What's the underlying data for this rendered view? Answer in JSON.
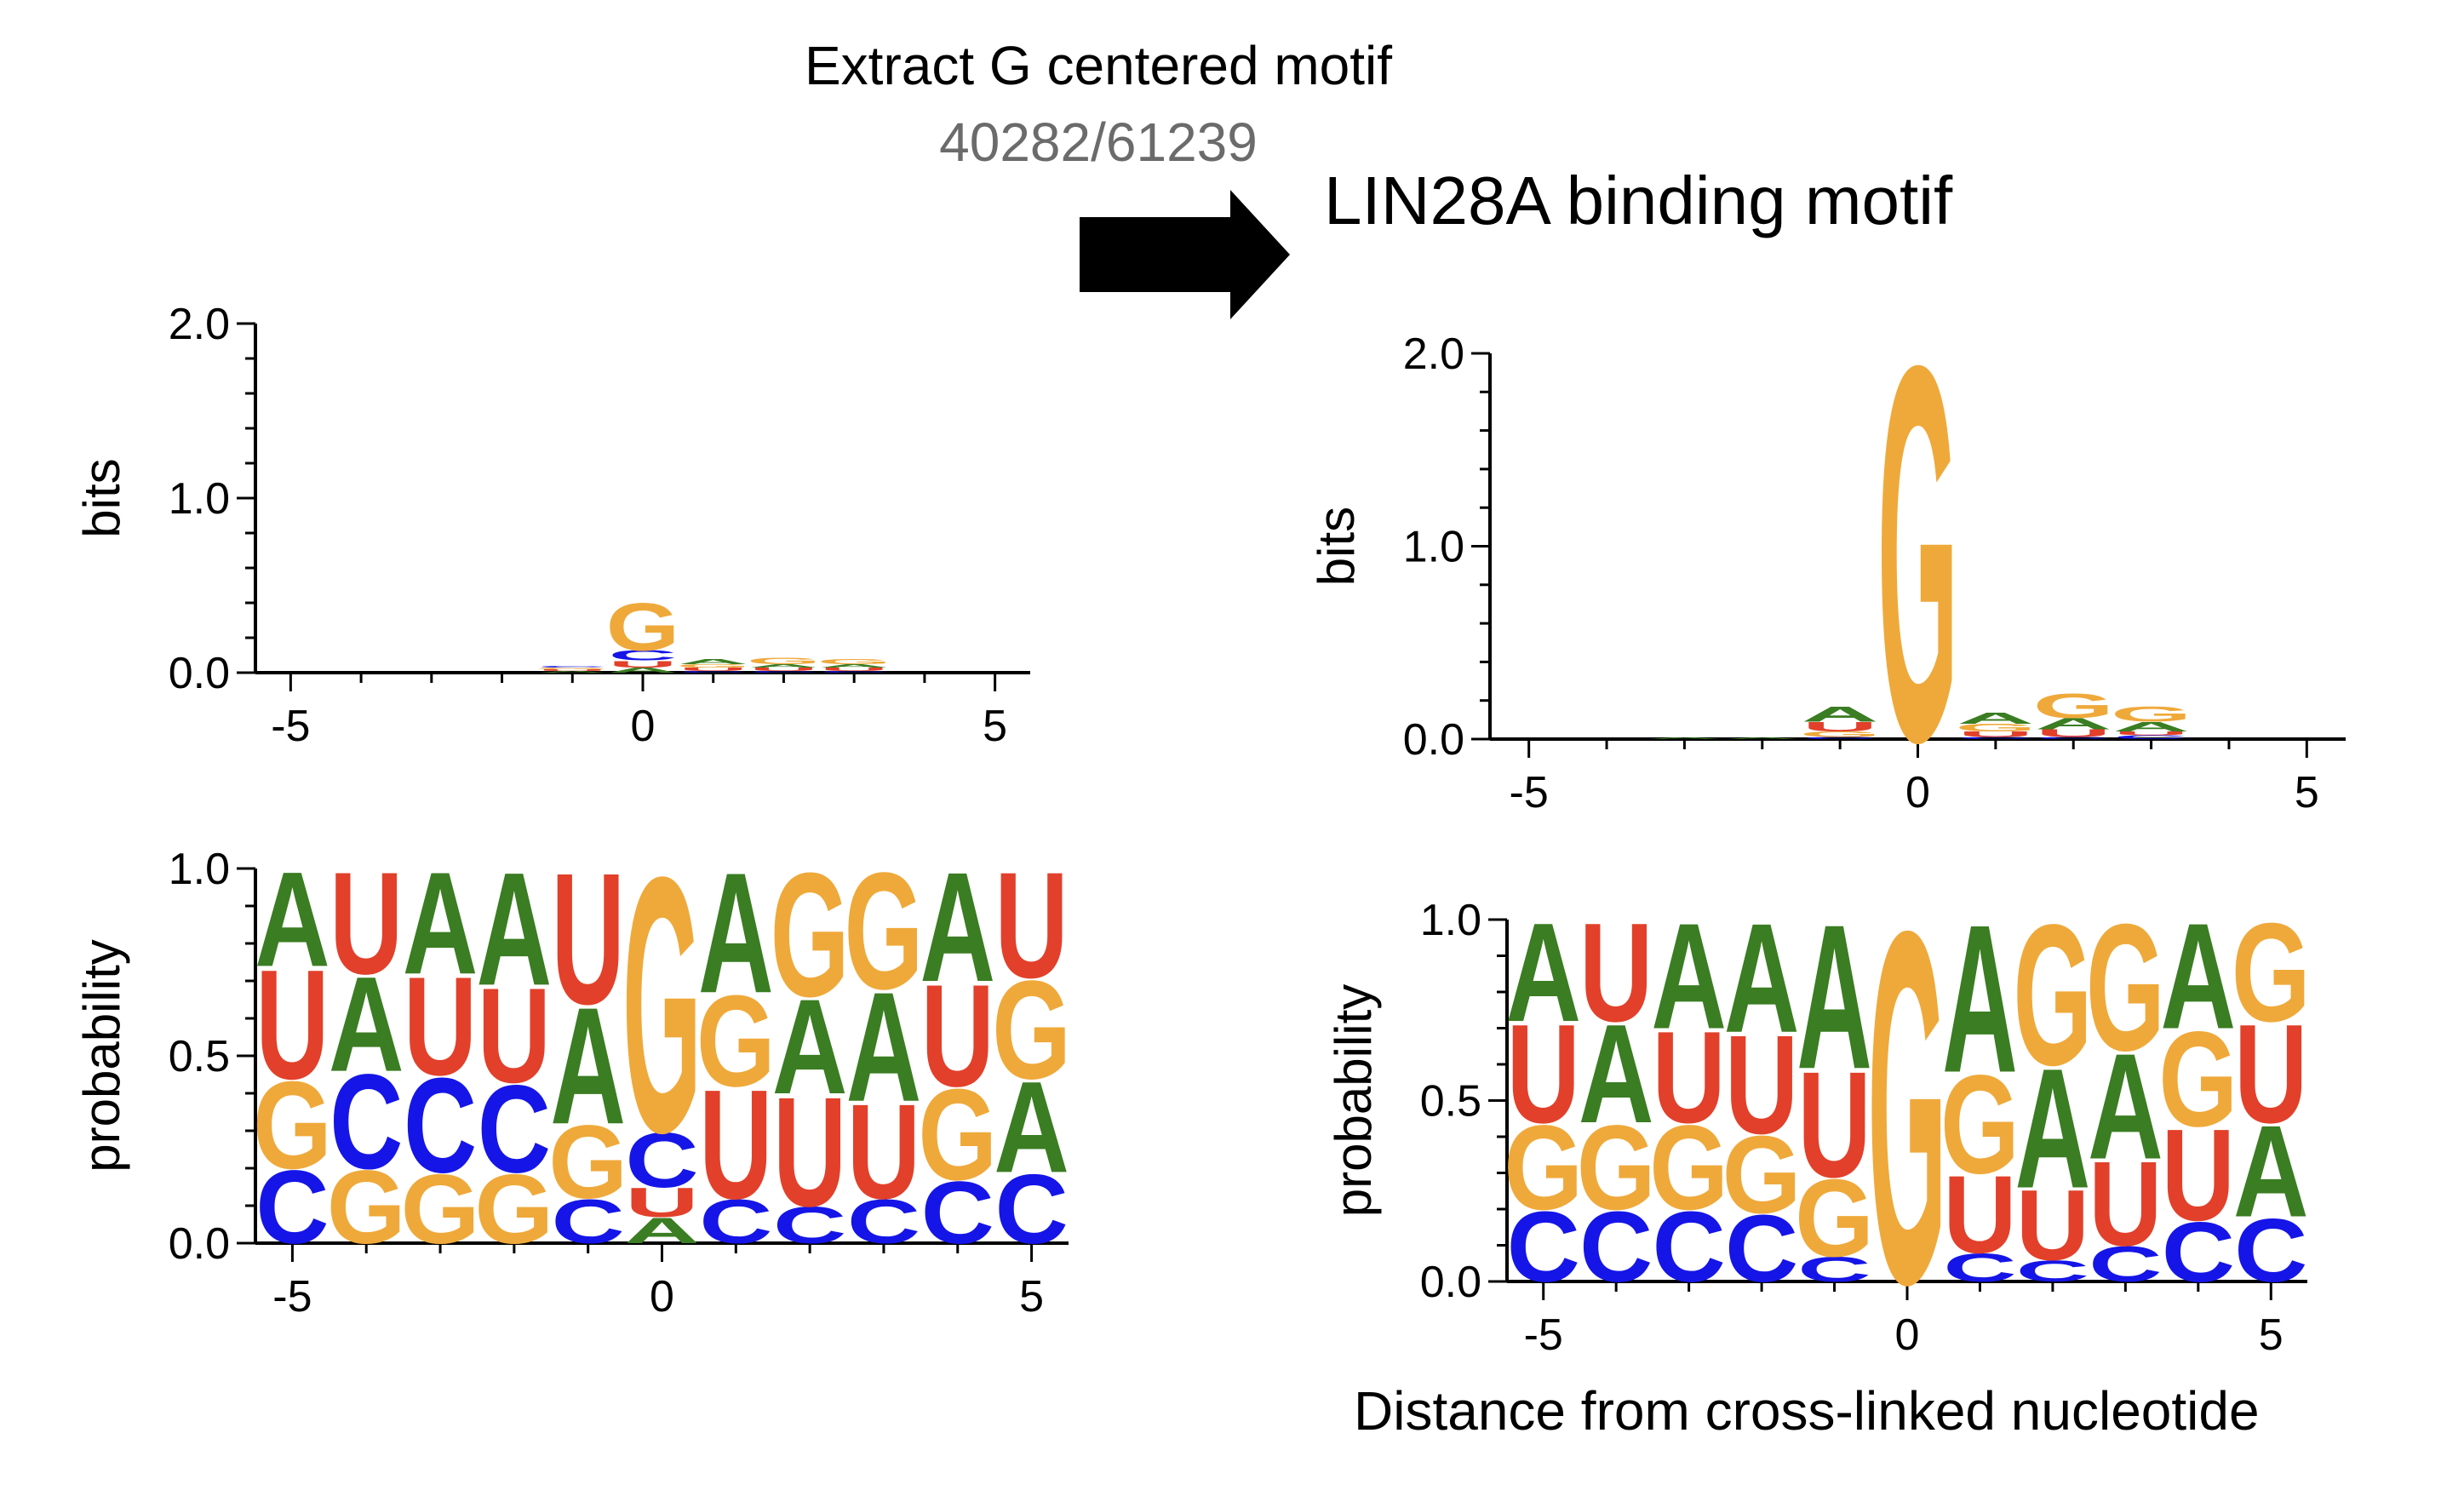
{
  "header": {
    "extract_label": "Extract G centered motif",
    "count_label": "40282/61239",
    "motif_title": "LIN28A binding motif",
    "xlabel": "Distance from cross-linked nucleotide"
  },
  "colors": {
    "A": "#3a7d22",
    "C": "#1515e8",
    "G": "#efa93a",
    "U": "#e2402a",
    "arrow": "#000000"
  },
  "chart_data": [
    {
      "id": "left-bits",
      "type": "sequence-logo-bits",
      "ylabel": "bits",
      "ylim": [
        0,
        2.0
      ],
      "yticks": [
        "0.0",
        "1.0",
        "2.0"
      ],
      "xlim": [
        -5.5,
        5.5
      ],
      "xticks": [
        "-5",
        "0",
        "5"
      ],
      "positions": [
        -5,
        -4,
        -3,
        -2,
        -1,
        0,
        1,
        2,
        3,
        4,
        5
      ],
      "columns": [
        [],
        [],
        [],
        [],
        [
          [
            "A",
            0.01
          ],
          [
            "U",
            0.01
          ],
          [
            "G",
            0.01
          ],
          [
            "C",
            0.01
          ]
        ],
        [
          [
            "A",
            0.03
          ],
          [
            "U",
            0.04
          ],
          [
            "C",
            0.06
          ],
          [
            "G",
            0.28
          ]
        ],
        [
          [
            "C",
            0.01
          ],
          [
            "U",
            0.02
          ],
          [
            "G",
            0.02
          ],
          [
            "A",
            0.03
          ]
        ],
        [
          [
            "C",
            0.01
          ],
          [
            "U",
            0.02
          ],
          [
            "A",
            0.02
          ],
          [
            "G",
            0.04
          ]
        ],
        [
          [
            "C",
            0.01
          ],
          [
            "U",
            0.02
          ],
          [
            "A",
            0.02
          ],
          [
            "G",
            0.03
          ]
        ],
        [],
        []
      ]
    },
    {
      "id": "left-prob",
      "type": "sequence-logo-probability",
      "ylabel": "probability",
      "ylim": [
        0,
        1.0
      ],
      "yticks": [
        "0.0",
        "0.5",
        "1.0"
      ],
      "xlim": [
        -5.5,
        5.5
      ],
      "xticks": [
        "-5",
        "0",
        "5"
      ],
      "positions": [
        -5,
        -4,
        -3,
        -2,
        -1,
        0,
        1,
        2,
        3,
        4,
        5
      ],
      "columns": [
        [
          [
            "C",
            0.2
          ],
          [
            "G",
            0.24
          ],
          [
            "U",
            0.3
          ],
          [
            "A",
            0.26
          ]
        ],
        [
          [
            "G",
            0.2
          ],
          [
            "C",
            0.26
          ],
          [
            "A",
            0.26
          ],
          [
            "U",
            0.28
          ]
        ],
        [
          [
            "G",
            0.19
          ],
          [
            "C",
            0.26
          ],
          [
            "U",
            0.27
          ],
          [
            "A",
            0.28
          ]
        ],
        [
          [
            "G",
            0.19
          ],
          [
            "C",
            0.24
          ],
          [
            "U",
            0.26
          ],
          [
            "A",
            0.31
          ]
        ],
        [
          [
            "C",
            0.12
          ],
          [
            "G",
            0.2
          ],
          [
            "A",
            0.32
          ],
          [
            "U",
            0.36
          ]
        ],
        [
          [
            "A",
            0.07
          ],
          [
            "U",
            0.08
          ],
          [
            "C",
            0.15
          ],
          [
            "G",
            0.7
          ]
        ],
        [
          [
            "C",
            0.12
          ],
          [
            "U",
            0.3
          ],
          [
            "G",
            0.25
          ],
          [
            "A",
            0.33
          ]
        ],
        [
          [
            "C",
            0.1
          ],
          [
            "U",
            0.3
          ],
          [
            "A",
            0.26
          ],
          [
            "G",
            0.34
          ]
        ],
        [
          [
            "C",
            0.12
          ],
          [
            "U",
            0.26
          ],
          [
            "A",
            0.3
          ],
          [
            "G",
            0.32
          ]
        ],
        [
          [
            "C",
            0.17
          ],
          [
            "G",
            0.25
          ],
          [
            "U",
            0.28
          ],
          [
            "A",
            0.3
          ]
        ],
        [
          [
            "C",
            0.19
          ],
          [
            "A",
            0.25
          ],
          [
            "G",
            0.27
          ],
          [
            "U",
            0.29
          ]
        ]
      ]
    },
    {
      "id": "right-bits",
      "type": "sequence-logo-bits",
      "ylabel": "bits",
      "ylim": [
        0,
        2.0
      ],
      "yticks": [
        "0.0",
        "1.0",
        "2.0"
      ],
      "xlim": [
        -5.5,
        5.5
      ],
      "xticks": [
        "-5",
        "0",
        "5"
      ],
      "positions": [
        -5,
        -4,
        -3,
        -2,
        -1,
        0,
        1,
        2,
        3,
        4,
        5
      ],
      "columns": [
        [],
        [],
        [
          [
            "A",
            0.01
          ]
        ],
        [
          [
            "A",
            0.01
          ]
        ],
        [
          [
            "C",
            0.01
          ],
          [
            "G",
            0.03
          ],
          [
            "U",
            0.05
          ],
          [
            "A",
            0.08
          ]
        ],
        [
          [
            "G",
            2.0
          ]
        ],
        [
          [
            "C",
            0.01
          ],
          [
            "U",
            0.03
          ],
          [
            "G",
            0.04
          ],
          [
            "A",
            0.06
          ]
        ],
        [
          [
            "C",
            0.01
          ],
          [
            "U",
            0.04
          ],
          [
            "A",
            0.06
          ],
          [
            "G",
            0.13
          ]
        ],
        [
          [
            "C",
            0.02
          ],
          [
            "U",
            0.02
          ],
          [
            "A",
            0.05
          ],
          [
            "G",
            0.08
          ]
        ],
        [],
        []
      ]
    },
    {
      "id": "right-prob",
      "type": "sequence-logo-probability",
      "ylabel": "probability",
      "ylim": [
        0,
        1.0
      ],
      "yticks": [
        "0.0",
        "0.5",
        "1.0"
      ],
      "xlim": [
        -5.5,
        5.5
      ],
      "xticks": [
        "-5",
        "0",
        "5"
      ],
      "positions": [
        -5,
        -4,
        -3,
        -2,
        -1,
        0,
        1,
        2,
        3,
        4,
        5
      ],
      "columns": [
        [
          [
            "C",
            0.2
          ],
          [
            "G",
            0.24
          ],
          [
            "U",
            0.28
          ],
          [
            "A",
            0.28
          ]
        ],
        [
          [
            "C",
            0.2
          ],
          [
            "G",
            0.24
          ],
          [
            "A",
            0.28
          ],
          [
            "U",
            0.28
          ]
        ],
        [
          [
            "C",
            0.2
          ],
          [
            "G",
            0.24
          ],
          [
            "U",
            0.26
          ],
          [
            "A",
            0.3
          ]
        ],
        [
          [
            "C",
            0.19
          ],
          [
            "G",
            0.22
          ],
          [
            "U",
            0.28
          ],
          [
            "A",
            0.31
          ]
        ],
        [
          [
            "C",
            0.07
          ],
          [
            "G",
            0.22
          ],
          [
            "U",
            0.3
          ],
          [
            "A",
            0.41
          ]
        ],
        [
          [
            "G",
            1.0
          ]
        ],
        [
          [
            "C",
            0.08
          ],
          [
            "U",
            0.22
          ],
          [
            "G",
            0.28
          ],
          [
            "A",
            0.42
          ]
        ],
        [
          [
            "C",
            0.06
          ],
          [
            "U",
            0.2
          ],
          [
            "A",
            0.34
          ],
          [
            "G",
            0.4
          ]
        ],
        [
          [
            "C",
            0.1
          ],
          [
            "U",
            0.24
          ],
          [
            "A",
            0.3
          ],
          [
            "G",
            0.36
          ]
        ],
        [
          [
            "C",
            0.17
          ],
          [
            "U",
            0.26
          ],
          [
            "G",
            0.27
          ],
          [
            "A",
            0.3
          ]
        ],
        [
          [
            "C",
            0.18
          ],
          [
            "A",
            0.26
          ],
          [
            "U",
            0.28
          ],
          [
            "G",
            0.28
          ]
        ]
      ]
    }
  ]
}
